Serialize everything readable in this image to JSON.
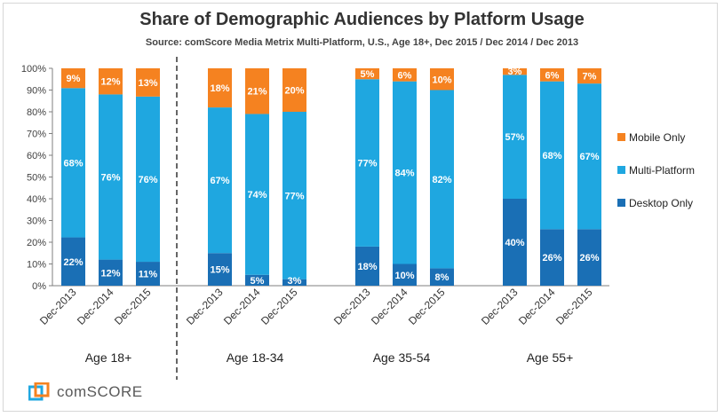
{
  "chart_data": {
    "type": "bar",
    "stacked": true,
    "percent_stacked": true,
    "title": "Share of Demographic Audiences by Platform Usage",
    "subtitle": "Source: comScore Media Metrix Multi-Platform, U.S., Age 18+, Dec 2015 / Dec 2014 / Dec 2013",
    "ylim": [
      0,
      100
    ],
    "yticks": [
      "0%",
      "10%",
      "20%",
      "30%",
      "40%",
      "50%",
      "60%",
      "70%",
      "80%",
      "90%",
      "100%"
    ],
    "groups": [
      {
        "label": "Age 18+",
        "categories": [
          "Dec-2013",
          "Dec-2014",
          "Dec-2015"
        ],
        "desktop": [
          22,
          12,
          11
        ],
        "multi": [
          68,
          76,
          76
        ],
        "mobile": [
          9,
          12,
          13
        ],
        "labels": {
          "desktop": [
            "22%",
            "12%",
            "11%"
          ],
          "multi": [
            "68%",
            "76%",
            "76%"
          ],
          "mobile": [
            "9%",
            "12%",
            "13%"
          ]
        }
      },
      {
        "label": "Age 18-34",
        "categories": [
          "Dec-2013",
          "Dec-2014",
          "Dec-2015"
        ],
        "desktop": [
          15,
          5,
          3
        ],
        "multi": [
          67,
          74,
          77
        ],
        "mobile": [
          18,
          21,
          20
        ],
        "labels": {
          "desktop": [
            "15%",
            "5%",
            "3%"
          ],
          "multi": [
            "67%",
            "74%",
            "77%"
          ],
          "mobile": [
            "18%",
            "21%",
            "20%"
          ]
        }
      },
      {
        "label": "Age 35-54",
        "categories": [
          "Dec-2013",
          "Dec-2014",
          "Dec-2015"
        ],
        "desktop": [
          18,
          10,
          8
        ],
        "multi": [
          77,
          84,
          82
        ],
        "mobile": [
          5,
          6,
          10
        ],
        "labels": {
          "desktop": [
            "18%",
            "10%",
            "8%"
          ],
          "multi": [
            "77%",
            "84%",
            "82%"
          ],
          "mobile": [
            "5%",
            "6%",
            "10%"
          ]
        }
      },
      {
        "label": "Age 55+",
        "categories": [
          "Dec-2013",
          "Dec-2014",
          "Dec-2015"
        ],
        "desktop": [
          40,
          26,
          26
        ],
        "multi": [
          57,
          68,
          67
        ],
        "mobile": [
          3,
          6,
          7
        ],
        "labels": {
          "desktop": [
            "40%",
            "26%",
            "26%"
          ],
          "multi": [
            "57%",
            "68%",
            "67%"
          ],
          "mobile": [
            "3%",
            "6%",
            "7%"
          ]
        }
      }
    ],
    "legend": [
      {
        "name": "Mobile Only",
        "color": "#f58220"
      },
      {
        "name": "Multi-Platform",
        "color": "#1fa7e0"
      },
      {
        "name": "Desktop Only",
        "color": "#1a6fb5"
      }
    ],
    "legend_position": "right",
    "colors": {
      "desktop": "#1a6fb5",
      "multi": "#1fa7e0",
      "mobile": "#f58220",
      "bar_label": "#ffffff",
      "axis": "#7f7f7f"
    }
  },
  "brand": {
    "logo_text": "comSCORE",
    "logo_icon": "comscore-logo-icon"
  }
}
